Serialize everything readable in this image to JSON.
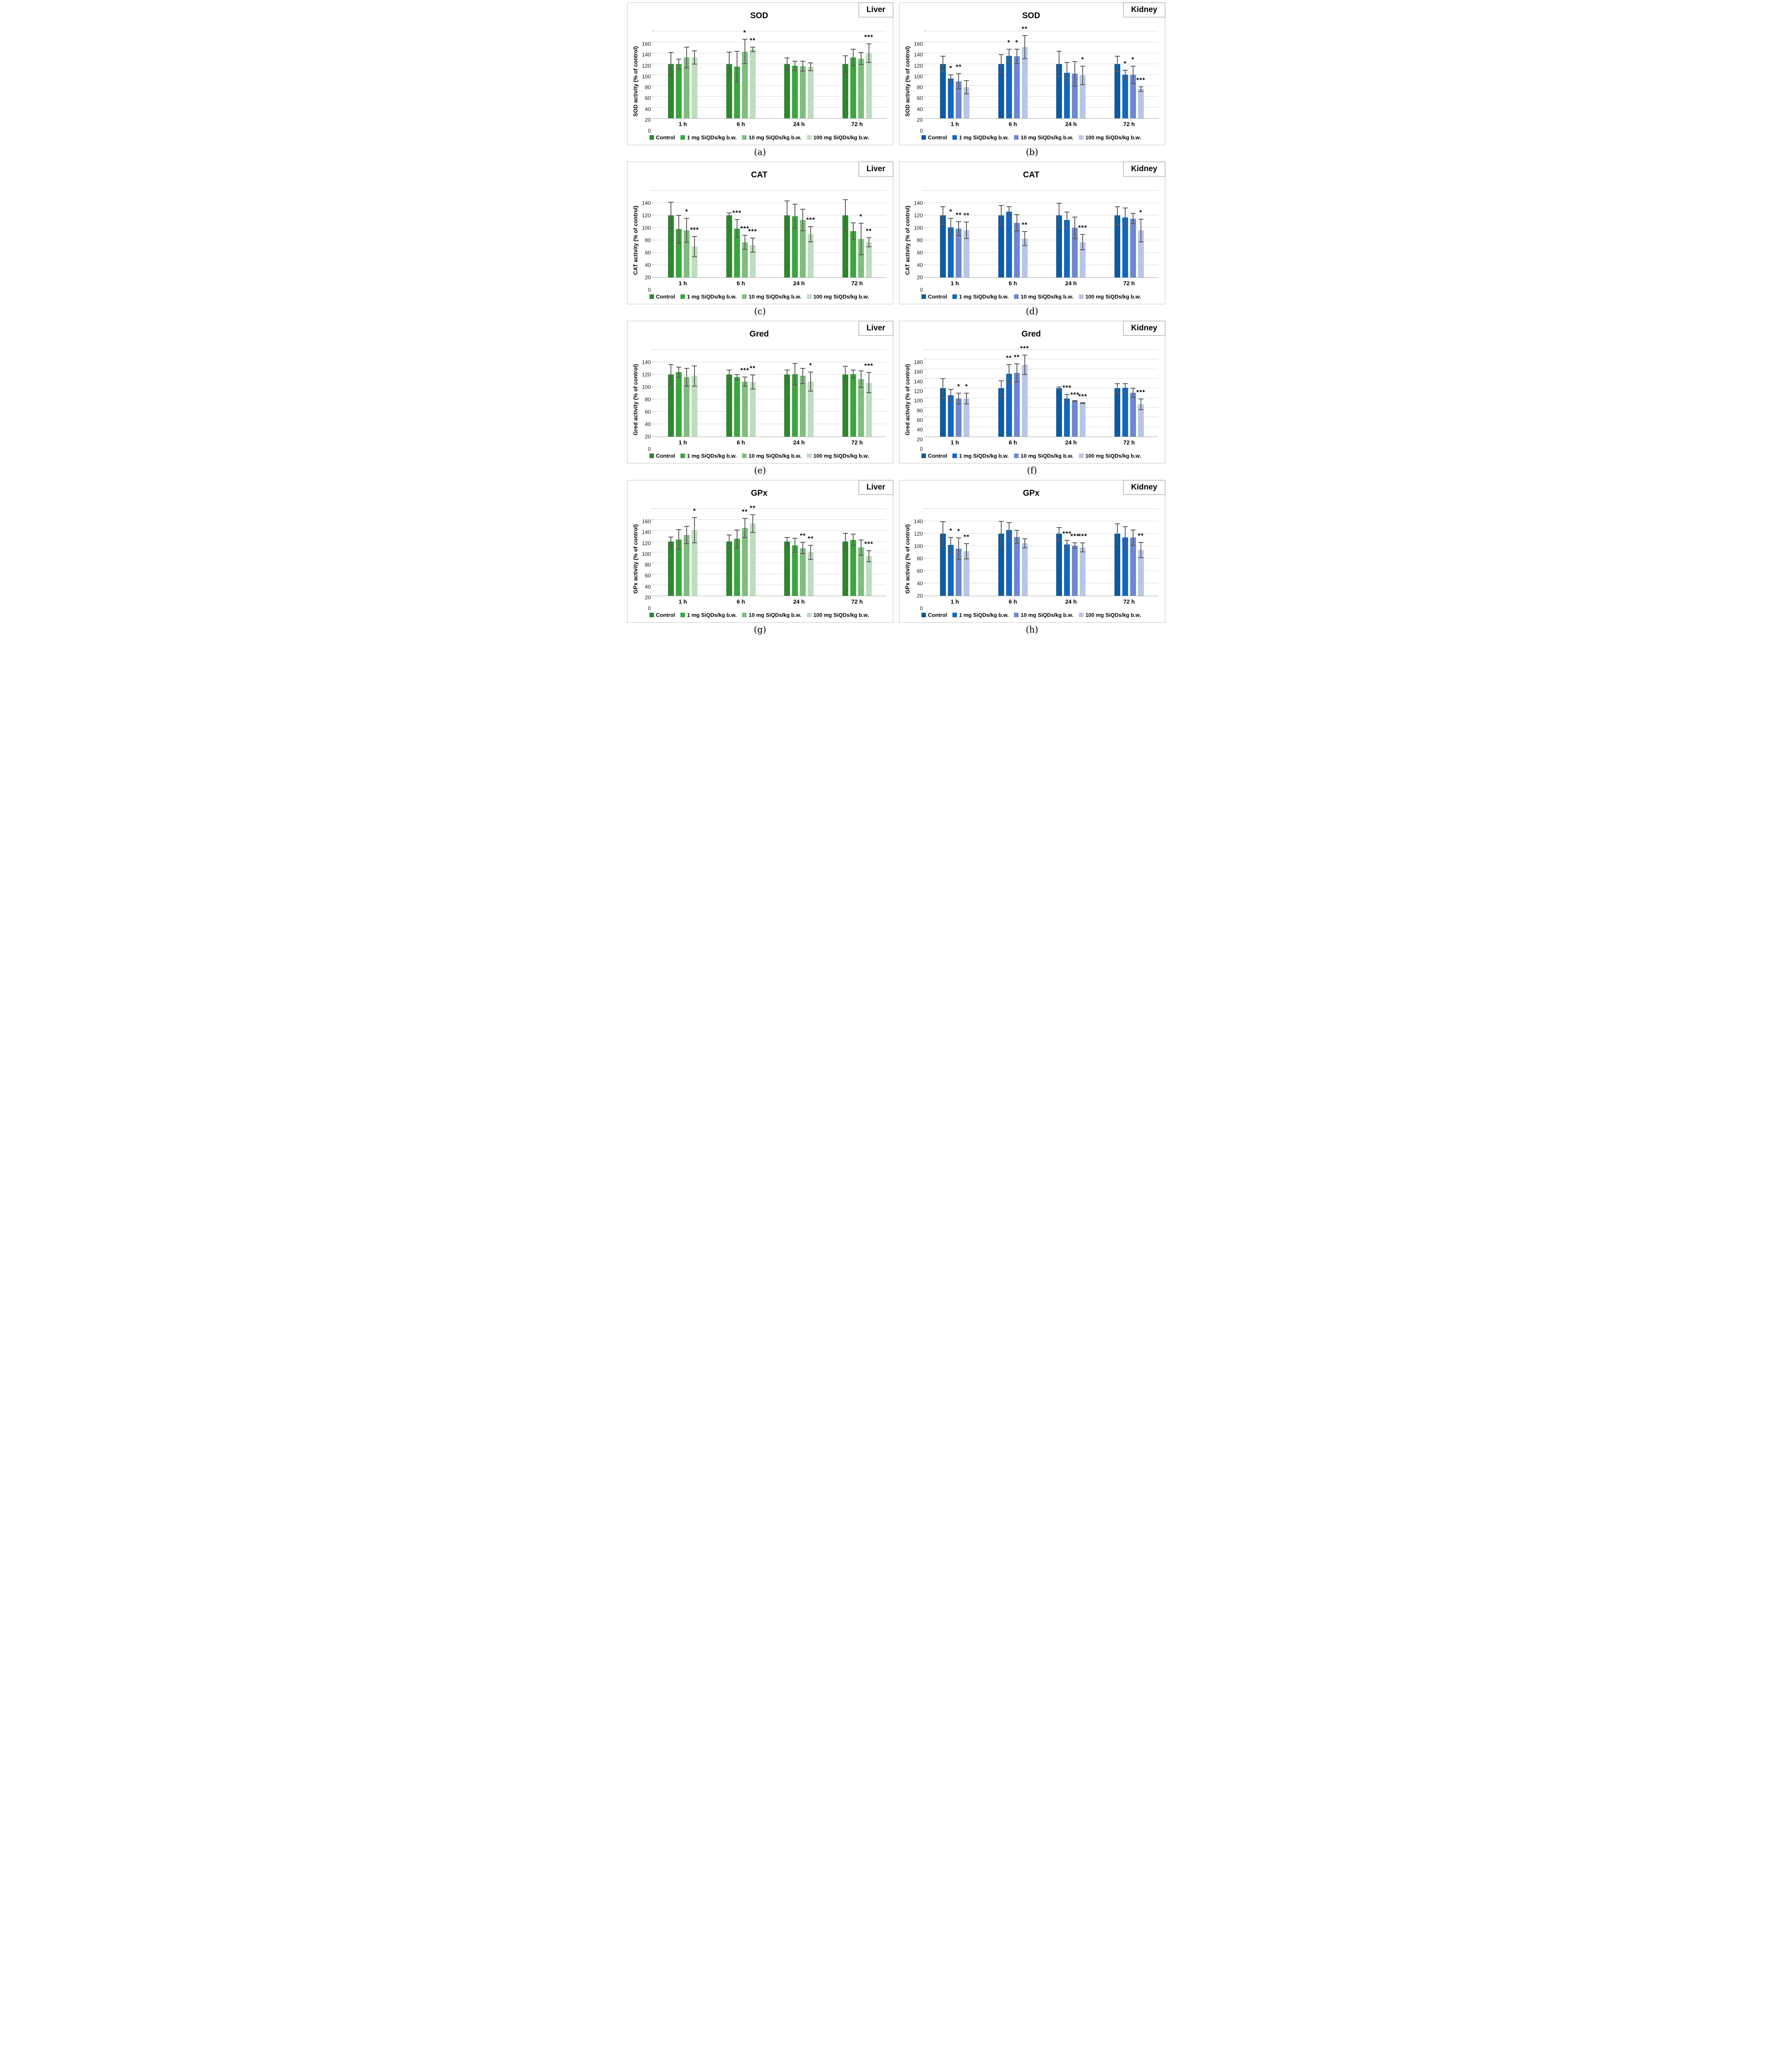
{
  "legend_labels": [
    "Control",
    "1 mg SiQDs/kg b.w.",
    "10 mg SiQDs/kg b.w.",
    "100 mg SiQDs/kg b.w."
  ],
  "error_bar_color": "#595959",
  "chart_data": [
    {
      "type": "bar",
      "caption": "(a)",
      "title": "SOD",
      "organ": "Liver",
      "ylabel": "SOD activity (% of control)",
      "ylim": [
        0,
        160
      ],
      "ystep": 20,
      "categories": [
        "1 h",
        "6 h",
        "24 h",
        "72 h"
      ],
      "bar_colors": [
        "#2d872d",
        "#3ca53c",
        "#7dbe7d",
        "#bedcbe"
      ],
      "series": [
        {
          "name": "Control",
          "values": [
            100,
            100,
            100,
            100
          ],
          "errors": [
            22,
            23,
            12,
            16
          ],
          "sig": [
            "",
            "",
            "",
            ""
          ]
        },
        {
          "name": "1 mg SiQDs/kg b.w.",
          "values": [
            100,
            95,
            97,
            112
          ],
          "errors": [
            10,
            29,
            9,
            16
          ],
          "sig": [
            "",
            "",
            "",
            ""
          ]
        },
        {
          "name": "10 mg SiQDs/kg b.w.",
          "values": [
            112,
            123,
            96,
            110
          ],
          "errors": [
            20,
            23,
            10,
            12
          ],
          "sig": [
            "",
            "*",
            "",
            ""
          ]
        },
        {
          "name": "100 mg SiQDs/kg b.w.",
          "values": [
            112,
            127,
            95,
            120
          ],
          "errors": [
            13,
            5,
            8,
            18
          ],
          "sig": [
            "",
            "**",
            "",
            "***"
          ]
        }
      ]
    },
    {
      "type": "bar",
      "caption": "(b)",
      "title": "SOD",
      "organ": "Kidney",
      "ylabel": "SOD activity (% of control)",
      "ylim": [
        0,
        160
      ],
      "ystep": 20,
      "categories": [
        "1 h",
        "6 h",
        "24 h",
        "72 h"
      ],
      "bar_colors": [
        "#0d5aa0",
        "#1566c0",
        "#6e87d2",
        "#b9c5e6"
      ],
      "series": [
        {
          "name": "Control",
          "values": [
            100,
            100,
            100,
            100
          ],
          "errors": [
            15,
            18,
            24,
            15
          ],
          "sig": [
            "",
            "",
            "",
            ""
          ]
        },
        {
          "name": "1 mg SiQDs/kg b.w.",
          "values": [
            73,
            115,
            84,
            80
          ],
          "errors": [
            8,
            13,
            20,
            9
          ],
          "sig": [
            "*",
            "*",
            "",
            "*"
          ]
        },
        {
          "name": "10 mg SiQDs/kg b.w.",
          "values": [
            68,
            114,
            82,
            80
          ],
          "errors": [
            15,
            14,
            23,
            17
          ],
          "sig": [
            "**",
            "*",
            "",
            "*"
          ]
        },
        {
          "name": "100 mg SiQDs/kg b.w.",
          "values": [
            57,
            131,
            79,
            54
          ],
          "errors": [
            13,
            22,
            18,
            5
          ],
          "sig": [
            "",
            "**",
            "*",
            "***"
          ]
        }
      ]
    },
    {
      "type": "bar",
      "caption": "(c)",
      "title": "CAT",
      "organ": "Liver",
      "ylabel": "CAT activity (% of control)",
      "ylim": [
        0,
        140
      ],
      "ystep": 20,
      "categories": [
        "1 h",
        "6 h",
        "24 h",
        "72 h"
      ],
      "bar_colors": [
        "#2d872d",
        "#3ca53c",
        "#7dbe7d",
        "#bedcbe"
      ],
      "series": [
        {
          "name": "Control",
          "values": [
            100,
            100,
            100,
            100
          ],
          "errors": [
            22,
            5,
            24,
            26
          ],
          "sig": [
            "",
            "",
            "",
            ""
          ]
        },
        {
          "name": "1 mg SiQDs/kg b.w.",
          "values": [
            78,
            79,
            99,
            75
          ],
          "errors": [
            23,
            15,
            20,
            14
          ],
          "sig": [
            "",
            "***",
            "",
            ""
          ]
        },
        {
          "name": "10 mg SiQDs/kg b.w.",
          "values": [
            76,
            57,
            93,
            62
          ],
          "errors": [
            20,
            12,
            18,
            26
          ],
          "sig": [
            "*",
            "***",
            "",
            "*"
          ]
        },
        {
          "name": "100 mg SiQDs/kg b.w.",
          "values": [
            50,
            52,
            70,
            57
          ],
          "errors": [
            17,
            12,
            13,
            8
          ],
          "sig": [
            "***",
            "***",
            "***",
            "**"
          ]
        }
      ]
    },
    {
      "type": "bar",
      "caption": "(d)",
      "title": "CAT",
      "organ": "Kidney",
      "ylabel": "CAT activity (% of control)",
      "ylim": [
        0,
        140
      ],
      "ystep": 20,
      "categories": [
        "1 h",
        "6 h",
        "24 h",
        "72 h"
      ],
      "bar_colors": [
        "#0d5aa0",
        "#1566c0",
        "#6e87d2",
        "#b9c5e6"
      ],
      "series": [
        {
          "name": "Control",
          "values": [
            100,
            100,
            100,
            100
          ],
          "errors": [
            15,
            17,
            20,
            15
          ],
          "sig": [
            "",
            "",
            "",
            ""
          ]
        },
        {
          "name": "1 mg SiQDs/kg b.w.",
          "values": [
            81,
            106,
            93,
            97
          ],
          "errors": [
            15,
            9,
            13,
            16
          ],
          "sig": [
            "*",
            "",
            "",
            ""
          ]
        },
        {
          "name": "10 mg SiQDs/kg b.w.",
          "values": [
            79,
            88,
            80,
            95
          ],
          "errors": [
            12,
            14,
            18,
            9
          ],
          "sig": [
            "**",
            "",
            "",
            ""
          ]
        },
        {
          "name": "100 mg SiQDs/kg b.w.",
          "values": [
            76,
            63,
            57,
            76
          ],
          "errors": [
            14,
            12,
            13,
            19
          ],
          "sig": [
            "**",
            "**",
            "***",
            "*"
          ]
        }
      ]
    },
    {
      "type": "bar",
      "caption": "(e)",
      "title": "Gred",
      "organ": "Liver",
      "ylabel": "Gred activity (% of control)",
      "ylim": [
        0,
        140
      ],
      "ystep": 20,
      "categories": [
        "1 h",
        "6 h",
        "24 h",
        "72 h"
      ],
      "bar_colors": [
        "#2d872d",
        "#3ca53c",
        "#7dbe7d",
        "#bedcbe"
      ],
      "series": [
        {
          "name": "Control",
          "values": [
            100,
            100,
            100,
            100
          ],
          "errors": [
            17,
            8,
            8,
            14
          ],
          "sig": [
            "",
            "",
            "",
            ""
          ]
        },
        {
          "name": "1 mg SiQDs/kg b.w.",
          "values": [
            104,
            96,
            101,
            101
          ],
          "errors": [
            9,
            5,
            18,
            7
          ],
          "sig": [
            "",
            "",
            "",
            ""
          ]
        },
        {
          "name": "10 mg SiQDs/kg b.w.",
          "values": [
            96,
            89,
            98,
            93
          ],
          "errors": [
            15,
            8,
            13,
            14
          ],
          "sig": [
            "",
            "***",
            "",
            ""
          ]
        },
        {
          "name": "100 mg SiQDs/kg b.w.",
          "values": [
            98,
            88,
            89,
            87
          ],
          "errors": [
            17,
            12,
            16,
            17
          ],
          "sig": [
            "",
            "**",
            "*",
            "***"
          ]
        }
      ]
    },
    {
      "type": "bar",
      "caption": "(f)",
      "title": "Gred",
      "organ": "Kidney",
      "ylabel": "Gred activity (% of control)",
      "ylim": [
        0,
        180
      ],
      "ystep": 20,
      "categories": [
        "1 h",
        "6 h",
        "24 h",
        "72 h"
      ],
      "bar_colors": [
        "#0d5aa0",
        "#1566c0",
        "#6e87d2",
        "#b9c5e6"
      ],
      "series": [
        {
          "name": "Control",
          "values": [
            100,
            100,
            100,
            100
          ],
          "errors": [
            21,
            17,
            4,
            11
          ],
          "sig": [
            "",
            "",
            "",
            ""
          ]
        },
        {
          "name": "1 mg SiQDs/kg b.w.",
          "values": [
            86,
            130,
            79,
            101
          ],
          "errors": [
            13,
            20,
            9,
            10
          ],
          "sig": [
            "",
            "**",
            "***",
            ""
          ]
        },
        {
          "name": "10 mg SiQDs/kg b.w.",
          "values": [
            79,
            132,
            73,
            91
          ],
          "errors": [
            12,
            20,
            1,
            10
          ],
          "sig": [
            "*",
            "**",
            "***",
            ""
          ]
        },
        {
          "name": "100 mg SiQDs/kg b.w.",
          "values": [
            79,
            149,
            69,
            67
          ],
          "errors": [
            12,
            21,
            1,
            12
          ],
          "sig": [
            "*",
            "***",
            "***",
            "***"
          ]
        }
      ]
    },
    {
      "type": "bar",
      "caption": "(g)",
      "title": "GPx",
      "organ": "Liver",
      "ylabel": "GPx activity (% of control)",
      "ylim": [
        0,
        160
      ],
      "ystep": 20,
      "categories": [
        "1 h",
        "6 h",
        "24 h",
        "72 h"
      ],
      "bar_colors": [
        "#2d872d",
        "#3ca53c",
        "#7dbe7d",
        "#bedcbe"
      ],
      "series": [
        {
          "name": "Control",
          "values": [
            100,
            100,
            100,
            100
          ],
          "errors": [
            9,
            13,
            8,
            16
          ],
          "sig": [
            "",
            "",
            "",
            ""
          ]
        },
        {
          "name": "1 mg SiQDs/kg b.w.",
          "values": [
            104,
            105,
            93,
            103
          ],
          "errors": [
            19,
            17,
            14,
            11
          ],
          "sig": [
            "",
            "",
            "",
            ""
          ]
        },
        {
          "name": "10 mg SiQDs/kg b.w.",
          "values": [
            112,
            125,
            88,
            89
          ],
          "errors": [
            17,
            18,
            11,
            15
          ],
          "sig": [
            "",
            "**",
            "**",
            ""
          ]
        },
        {
          "name": "100 mg SiQDs/kg b.w.",
          "values": [
            121,
            133,
            80,
            73
          ],
          "errors": [
            24,
            17,
            14,
            11
          ],
          "sig": [
            "*",
            "**",
            "**",
            "***"
          ]
        }
      ]
    },
    {
      "type": "bar",
      "caption": "(h)",
      "title": "GPx",
      "organ": "Kidney",
      "ylabel": "GPx activity (% of control)",
      "ylim": [
        0,
        140
      ],
      "ystep": 20,
      "categories": [
        "1 h",
        "6 h",
        "24 h",
        "72 h"
      ],
      "bar_colors": [
        "#0d5aa0",
        "#1566c0",
        "#6e87d2",
        "#b9c5e6"
      ],
      "series": [
        {
          "name": "Control",
          "values": [
            100,
            100,
            100,
            100
          ],
          "errors": [
            20,
            21,
            11,
            17
          ],
          "sig": [
            "",
            "",
            "",
            ""
          ]
        },
        {
          "name": "1 mg SiQDs/kg b.w.",
          "values": [
            82,
            106,
            83,
            94
          ],
          "errors": [
            13,
            13,
            7,
            18
          ],
          "sig": [
            "*",
            "",
            "***",
            ""
          ]
        },
        {
          "name": "10 mg SiQDs/kg b.w.",
          "values": [
            76,
            95,
            81,
            94
          ],
          "errors": [
            18,
            11,
            5,
            13
          ],
          "sig": [
            "*",
            "",
            "***",
            ""
          ]
        },
        {
          "name": "100 mg SiQDs/kg b.w.",
          "values": [
            72,
            85,
            78,
            74
          ],
          "errors": [
            13,
            8,
            8,
            13
          ],
          "sig": [
            "**",
            "",
            "***",
            "**"
          ]
        }
      ]
    }
  ]
}
